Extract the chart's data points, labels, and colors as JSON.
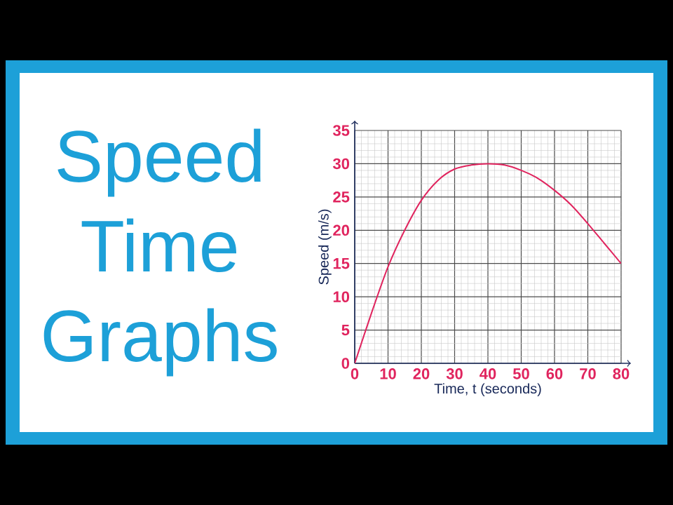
{
  "chart_data": {
    "type": "line",
    "title": "Speed Time Graphs",
    "xlabel": "Time, t (seconds)",
    "ylabel": "Speed (m/s)",
    "x": [
      0,
      5,
      10,
      15,
      20,
      25,
      30,
      35,
      40,
      45,
      50,
      55,
      60,
      65,
      70,
      75,
      80
    ],
    "series": [
      {
        "color": "#e0245e",
        "values": [
          0,
          7.5,
          14.5,
          20,
          24.5,
          27.5,
          29.2,
          29.8,
          30,
          29.8,
          29,
          27.8,
          26,
          23.8,
          21,
          18,
          15
        ]
      }
    ],
    "xlim": [
      0,
      80
    ],
    "ylim": [
      0,
      35
    ],
    "xticks": [
      0,
      10,
      20,
      30,
      40,
      50,
      60,
      70,
      80
    ],
    "yticks": [
      0,
      5,
      10,
      15,
      20,
      25,
      30,
      35
    ],
    "grid": true,
    "marker": "none",
    "line_style": "solid"
  }
}
